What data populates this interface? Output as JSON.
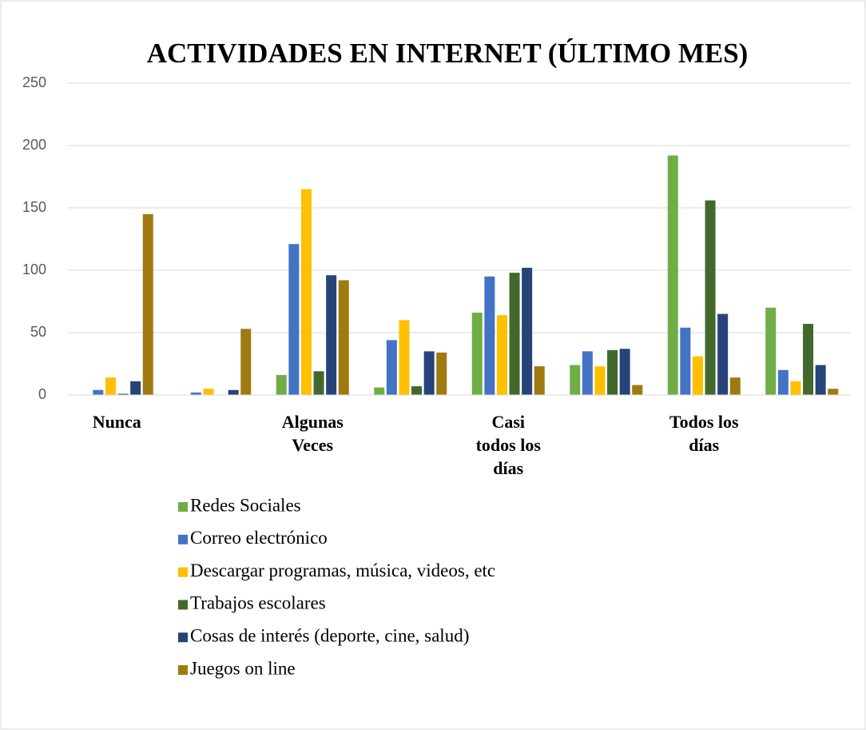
{
  "chart_data": {
    "type": "bar",
    "title": "ACTIVIDADES EN INTERNET (ÚLTIMO MES)",
    "categories": [
      "Nunca",
      null,
      "Algunas Veces",
      null,
      "Casi todos los días",
      null,
      "Todos los días",
      null
    ],
    "series": [
      {
        "name": "Redes Sociales",
        "color": "#70ad47",
        "values": [
          0,
          0,
          16,
          6,
          66,
          24,
          192,
          70
        ]
      },
      {
        "name": "Correo electrónico",
        "color": "#4472c4",
        "values": [
          4,
          2,
          121,
          44,
          95,
          35,
          54,
          20
        ]
      },
      {
        "name": "Descargar programas, música, videos, etc",
        "color": "#ffc000",
        "values": [
          14,
          5,
          165,
          60,
          64,
          23,
          31,
          11
        ]
      },
      {
        "name": "Trabajos escolares",
        "color": "#43682b",
        "values": [
          1,
          0,
          19,
          7,
          98,
          36,
          156,
          57
        ]
      },
      {
        "name": "Cosas de interés (deporte, cine, salud)",
        "color": "#264478",
        "values": [
          11,
          4,
          96,
          35,
          102,
          37,
          65,
          24
        ]
      },
      {
        "name": "Juegos on line",
        "color": "#9e7a10",
        "values": [
          145,
          53,
          92,
          34,
          23,
          8,
          14,
          5
        ]
      }
    ],
    "ylim": [
      0,
      250
    ],
    "yticks": [
      0,
      50,
      100,
      150,
      200,
      250
    ],
    "grid": true,
    "legend": "bottom"
  }
}
